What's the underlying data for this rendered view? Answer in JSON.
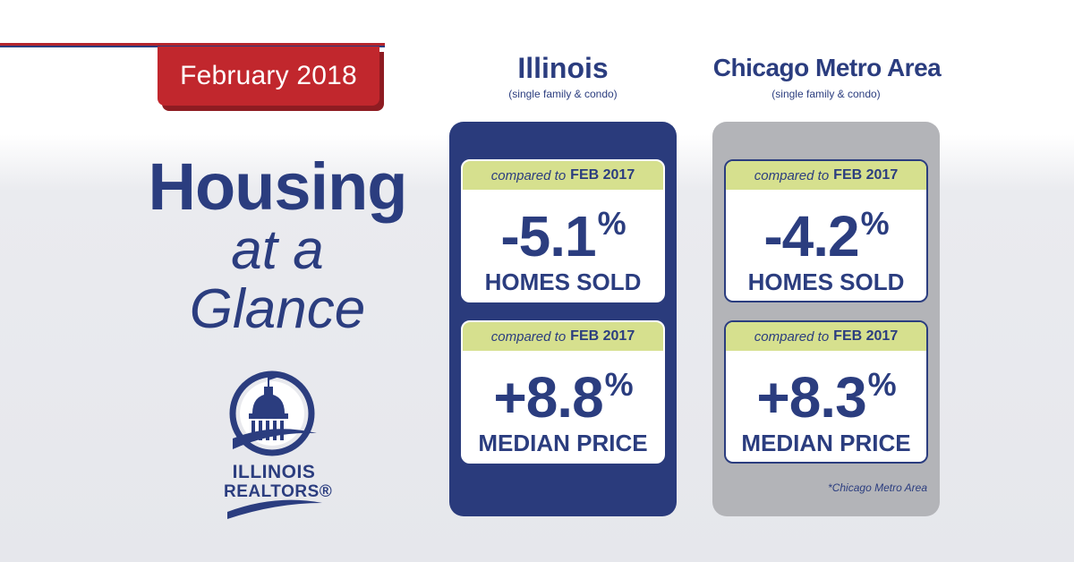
{
  "header": {
    "month_label": "February 2018"
  },
  "hero": {
    "line1": "Housing",
    "line2": "at a",
    "line3": "Glance"
  },
  "logo": {
    "line1": "ILLINOIS",
    "line2": "REALTORS®"
  },
  "regions": [
    {
      "title": "Illinois",
      "subtitle": "(single family & condo)",
      "cards": [
        {
          "compare_prefix": "compared to",
          "compare_period": "FEB 2017",
          "value": "-5.1",
          "unit": "%",
          "metric": "HOMES SOLD"
        },
        {
          "compare_prefix": "compared to",
          "compare_period": "FEB 2017",
          "value": "+8.8",
          "unit": "%",
          "metric": "MEDIAN PRICE"
        }
      ]
    },
    {
      "title": "Chicago Metro Area",
      "subtitle": "(single family & condo)",
      "cards": [
        {
          "compare_prefix": "compared to",
          "compare_period": "FEB 2017",
          "value": "-4.2",
          "unit": "%",
          "metric": "HOMES SOLD"
        },
        {
          "compare_prefix": "compared to",
          "compare_period": "FEB 2017",
          "value": "+8.3",
          "unit": "%",
          "metric": "MEDIAN PRICE"
        }
      ],
      "footnote": "*Chicago Metro Area"
    }
  ],
  "colors": {
    "navy": "#2b3d7f",
    "red": "#c1272d",
    "lime": "#d6e08e",
    "gray_panel": "#b3b4b8"
  }
}
